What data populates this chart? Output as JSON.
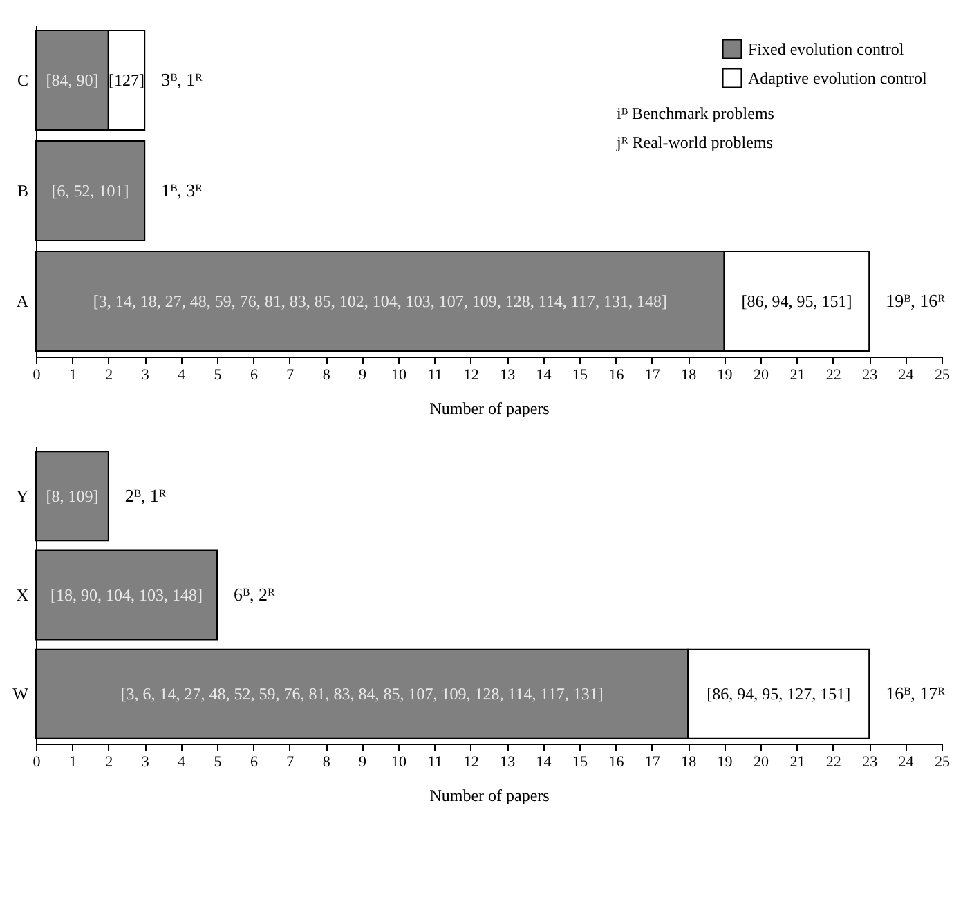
{
  "chart_data": [
    {
      "type": "bar",
      "orientation": "horizontal",
      "stacked": true,
      "categories": [
        "C",
        "B",
        "A"
      ],
      "series": [
        {
          "name": "Fixed evolution control",
          "color": "#808080",
          "values": [
            2,
            3,
            19
          ]
        },
        {
          "name": "Adaptive evolution control",
          "color": "#ffffff",
          "values": [
            1,
            null,
            4
          ]
        }
      ],
      "totals": [
        "3ᴮ, 1ᴿ",
        "1ᴮ, 3ᴿ",
        "19ᴮ, 16ᴿ"
      ],
      "xlabel": "Number of papers",
      "xlim": [
        0,
        25
      ],
      "xticks": [
        0,
        1,
        2,
        3,
        4,
        5,
        6,
        7,
        8,
        9,
        10,
        11,
        12,
        13,
        14,
        15,
        16,
        17,
        18,
        19,
        20,
        21,
        22,
        23,
        24,
        25
      ],
      "legend": "top right",
      "grid": false,
      "annotations": [
        "iᴮ Benchmark problems",
        "jᴿ Real-world problems",
        {
          "text": "[84, 90]",
          "x": 1,
          "y": "C"
        },
        {
          "text": "[127]",
          "x": 2.5,
          "y": "C"
        },
        {
          "text": "[6, 52, 101]",
          "x": 1.5,
          "y": "B"
        },
        {
          "text": "[3, 14, 18, 27, 48, 59, 76, 81, 83, 85, 102, 104, 103, 107, 109, 128, 114, 117, 131, 148]",
          "x": 9.5,
          "y": "A"
        },
        {
          "text": "[86, 94, 95, 151]",
          "x": 21,
          "y": "A"
        }
      ]
    },
    {
      "type": "bar",
      "orientation": "horizontal",
      "stacked": true,
      "categories": [
        "Y",
        "X",
        "W"
      ],
      "series": [
        {
          "color": "#808080",
          "values": [
            2,
            5,
            18
          ]
        },
        {
          "color": "#ffffff",
          "values": [
            null,
            null,
            5
          ]
        }
      ],
      "totals": [
        "2ᴮ, 1ᴿ",
        "6ᴮ, 2ᴿ",
        "16ᴮ, 17ᴿ"
      ],
      "xlabel": "Number of papers",
      "xlim": [
        0,
        25
      ],
      "xticks": [
        0,
        1,
        2,
        3,
        4,
        5,
        6,
        7,
        8,
        9,
        10,
        11,
        12,
        13,
        14,
        15,
        16,
        17,
        18,
        19,
        20,
        21,
        22,
        23,
        24,
        25
      ],
      "legend": false,
      "grid": false,
      "annotations": [
        {
          "text": "[8, 109]",
          "x": 1,
          "y": "Y"
        },
        {
          "text": "[18, 90, 104, 103, 148]",
          "x": 2.5,
          "y": "X"
        },
        {
          "text": "[3, 6, 14, 27, 48, 52, 59, 76, 81, 83, 84, 85, 107, 109, 128, 114, 117, 131]",
          "x": 9,
          "y": "W"
        },
        {
          "text": "[86, 94, 95, 127, 151]",
          "x": 20.5,
          "y": "W"
        }
      ]
    }
  ]
}
